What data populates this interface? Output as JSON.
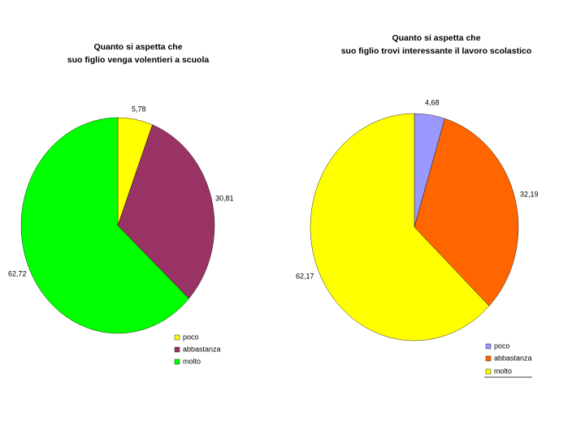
{
  "chart_data": [
    {
      "type": "pie",
      "title": [
        "Quanto si aspetta che",
        "suo figlio venga volentieri a scuola"
      ],
      "categories": [
        "poco",
        "abbastanza",
        "molto"
      ],
      "values": [
        5.78,
        30.81,
        62.72
      ],
      "value_labels": [
        "5,78",
        "30,81",
        "62,72"
      ],
      "colors": [
        "#ffff00",
        "#993366",
        "#00ff00"
      ]
    },
    {
      "type": "pie",
      "title": [
        "Quanto si aspetta che",
        "suo figlio trovi interessante il lavoro scolastico"
      ],
      "categories": [
        "poco",
        "abbastanza",
        "molto"
      ],
      "values": [
        4.68,
        32.19,
        62.17
      ],
      "value_labels": [
        "4,68",
        "32,19",
        "62,17"
      ],
      "colors": [
        "#9999ff",
        "#ff6600",
        "#ffff00"
      ]
    }
  ]
}
